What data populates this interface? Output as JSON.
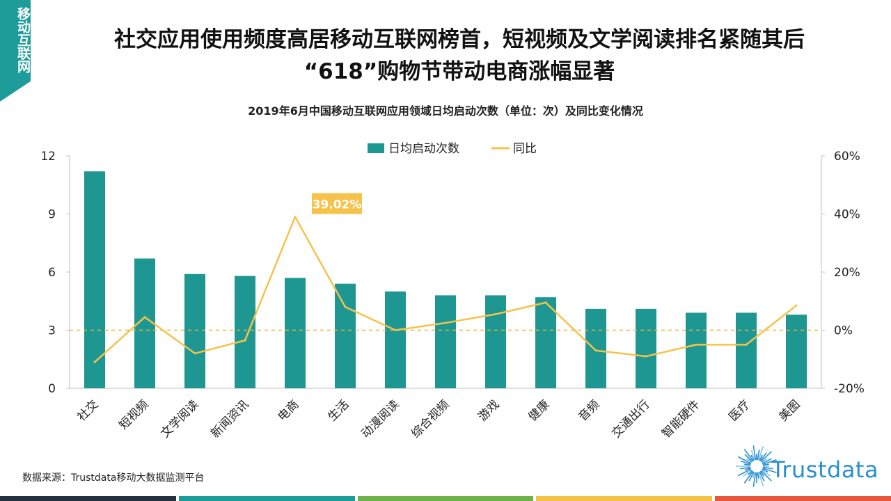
{
  "side_tab": {
    "label": "移动互联网"
  },
  "title": {
    "line1": "社交应用使用频度高居移动互联网榜首，短视频及文学阅读排名紧随其后",
    "line2": "“618”购物节带动电商涨幅显著"
  },
  "source": "数据来源：Trustdata移动大数据监测平台",
  "logo": {
    "text": "Trustdata",
    "icon": "sunburst-icon"
  },
  "colors": {
    "bar": "#1e9793",
    "line": "#f6c24a",
    "zero_line": "#f0b52c",
    "highlight": "#f6c24a",
    "brand": "#2a8fd0",
    "strip": [
      "#243240",
      "#1e9c9a",
      "#6db24a",
      "#f4c246",
      "#e8563e"
    ]
  },
  "chart_data": {
    "type": "bar",
    "title": "2019年6月中国移动互联网应用领域日均启动次数（单位：次）及同比变化情况",
    "categories": [
      "社交",
      "短视频",
      "文学阅读",
      "新闻资讯",
      "电商",
      "生活",
      "动漫阅读",
      "综合视频",
      "游戏",
      "健康",
      "音频",
      "交通出行",
      "智能硬件",
      "医疗",
      "美图"
    ],
    "series": [
      {
        "name": "日均启动次数",
        "kind": "bar",
        "axis": "left",
        "values": [
          11.2,
          6.7,
          5.9,
          5.8,
          5.7,
          5.4,
          5.0,
          4.8,
          4.8,
          4.7,
          4.1,
          4.1,
          3.9,
          3.9,
          3.8
        ]
      },
      {
        "name": "同比",
        "kind": "line",
        "axis": "right",
        "unit": "%",
        "values": [
          -11,
          4.5,
          -8,
          -3.5,
          39.02,
          8,
          0,
          2.5,
          5.5,
          9.5,
          -7,
          -9,
          -5,
          -5,
          8.5
        ]
      }
    ],
    "left_axis": {
      "range": [
        0,
        12
      ],
      "ticks": [
        "0",
        "3",
        "6",
        "9",
        "12"
      ]
    },
    "right_axis": {
      "range": [
        -20,
        60
      ],
      "ticks": [
        "-20%",
        "0%",
        "20%",
        "40%",
        "60%"
      ]
    },
    "reference_line": {
      "axis": "right",
      "value": 0,
      "style": "dashed"
    },
    "annotation": {
      "category": "电商",
      "text": "39.02%"
    },
    "legend": {
      "position": "top"
    }
  }
}
